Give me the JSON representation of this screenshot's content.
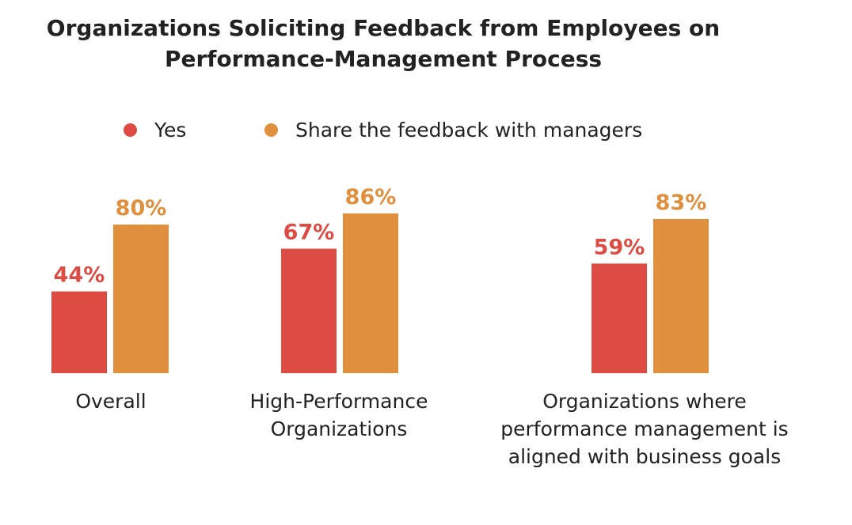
{
  "chart_data": {
    "type": "bar",
    "title_lines": [
      "Organizations Soliciting Feedback from Employees on",
      "Performance-Management Process"
    ],
    "xlabel": "",
    "ylabel": "",
    "ylim": [
      0,
      100
    ],
    "grid": false,
    "legend_position": "top",
    "categories": [
      [
        "Overall"
      ],
      [
        "High-Performance",
        "Organizations"
      ],
      [
        "Organizations where",
        "performance management is",
        "aligned with business goals"
      ]
    ],
    "series": [
      {
        "name": "Yes",
        "color": "#dd4b43",
        "values": [
          44,
          67,
          59
        ],
        "labels": [
          "44%",
          "67%",
          "59%"
        ]
      },
      {
        "name": "Share the feedback with managers",
        "color": "#e08f3c",
        "values": [
          80,
          86,
          83
        ],
        "labels": [
          "80%",
          "86%",
          "83%"
        ]
      }
    ]
  }
}
